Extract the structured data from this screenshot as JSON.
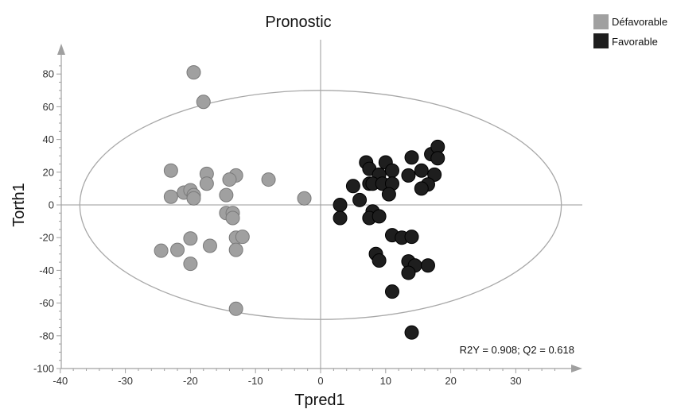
{
  "chart_data": {
    "type": "scatter",
    "title": "Pronostic",
    "xlabel": "Tpred1",
    "ylabel": "Torth1",
    "xlim": [
      -40,
      40
    ],
    "ylim": [
      -100,
      90
    ],
    "x_ticks": [
      -40,
      -30,
      -20,
      -10,
      0,
      10,
      20,
      30
    ],
    "y_ticks": [
      -100,
      -80,
      -60,
      -40,
      -20,
      0,
      20,
      40,
      60,
      80
    ],
    "grid": false,
    "legend_position": "top-right",
    "annotation": "R2Y = 0.908; Q2 = 0.618",
    "ellipse": {
      "center": [
        0,
        0
      ],
      "rx": 37,
      "ry": 70
    },
    "series": [
      {
        "name": "Défavorable",
        "color": "#a0a0a0",
        "points": [
          [
            -19.5,
            81
          ],
          [
            -18,
            63
          ],
          [
            -23,
            21
          ],
          [
            -17.5,
            19
          ],
          [
            -13,
            18
          ],
          [
            -14,
            15.5
          ],
          [
            -8,
            15.5
          ],
          [
            -17.5,
            13
          ],
          [
            -21,
            7.5
          ],
          [
            -20,
            9
          ],
          [
            -19.5,
            6
          ],
          [
            -19.5,
            4
          ],
          [
            -23,
            5
          ],
          [
            -14.5,
            6
          ],
          [
            -2.5,
            4
          ],
          [
            -14.5,
            -5
          ],
          [
            -13.5,
            -5
          ],
          [
            -13.5,
            -8
          ],
          [
            -13,
            -20
          ],
          [
            -12,
            -19.5
          ],
          [
            -20,
            -20.5
          ],
          [
            -17,
            -25
          ],
          [
            -24.5,
            -28
          ],
          [
            -22,
            -27.5
          ],
          [
            -13,
            -27.5
          ],
          [
            -20,
            -36
          ],
          [
            -13,
            -63.5
          ]
        ]
      },
      {
        "name": "Favorable",
        "color": "#1e1e1e",
        "points": [
          [
            7,
            26
          ],
          [
            10,
            26
          ],
          [
            11,
            21
          ],
          [
            7.5,
            22
          ],
          [
            9,
            18.5
          ],
          [
            14,
            29
          ],
          [
            17,
            31
          ],
          [
            18,
            35.5
          ],
          [
            15.5,
            21
          ],
          [
            17.5,
            18.5
          ],
          [
            13.5,
            18
          ],
          [
            18,
            28.5
          ],
          [
            16.5,
            12.5
          ],
          [
            15.5,
            10
          ],
          [
            5,
            11.5
          ],
          [
            7.5,
            13
          ],
          [
            8,
            13
          ],
          [
            9.5,
            13
          ],
          [
            11,
            13
          ],
          [
            10.5,
            6.5
          ],
          [
            6,
            3
          ],
          [
            3,
            0
          ],
          [
            3,
            -8
          ],
          [
            8,
            -4
          ],
          [
            7.5,
            -8
          ],
          [
            9,
            -7
          ],
          [
            11,
            -18.5
          ],
          [
            12.5,
            -20
          ],
          [
            14,
            -19.5
          ],
          [
            8.5,
            -30
          ],
          [
            9,
            -34
          ],
          [
            13.5,
            -34.5
          ],
          [
            14.5,
            -37
          ],
          [
            16.5,
            -37
          ],
          [
            13.5,
            -41.5
          ],
          [
            11,
            -53
          ],
          [
            14,
            -78
          ]
        ]
      }
    ]
  }
}
